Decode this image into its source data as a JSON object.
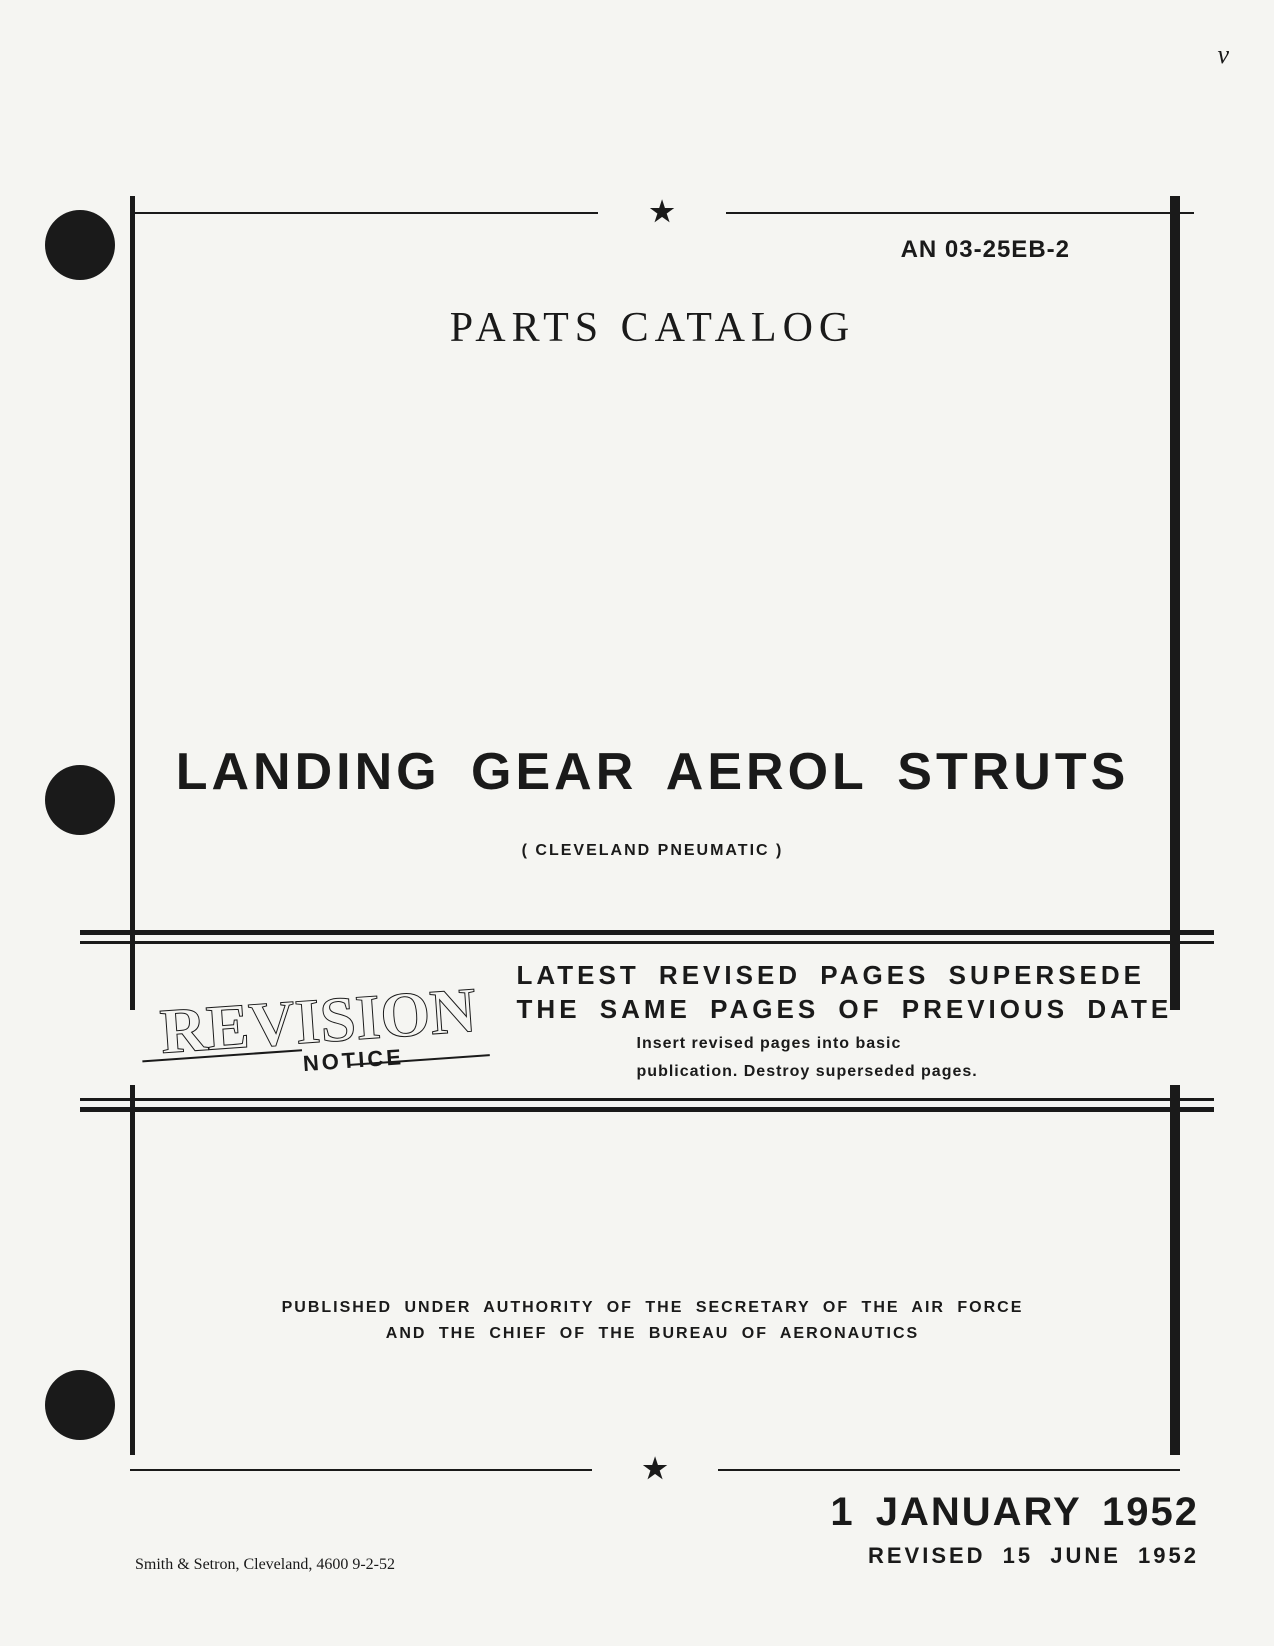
{
  "document": {
    "doc_id": "AN  03-25EB-2",
    "catalog_title": "PARTS  CATALOG",
    "main_title": "LANDING  GEAR  AEROL  STRUTS",
    "manufacturer": "( CLEVELAND  PNEUMATIC )",
    "star_glyph": "★"
  },
  "revision": {
    "stamp_text": "REVISION",
    "notice_text": "NOTICE",
    "heading_line1": "LATEST  REVISED  PAGES  SUPERSEDE",
    "heading_line2": "THE  SAME  PAGES  OF  PREVIOUS  DATE",
    "sub_line1": "Insert  revised  pages  into  basic",
    "sub_line2": "publication.  Destroy  superseded  pages."
  },
  "authority": {
    "line1": "PUBLISHED  UNDER  AUTHORITY  OF  THE  SECRETARY  OF  THE  AIR  FORCE",
    "line2": "AND  THE  CHIEF  OF  THE  BUREAU  OF  AERONAUTICS"
  },
  "dates": {
    "main": "1 JANUARY 1952",
    "revised": "REVISED 15 JUNE 1952"
  },
  "printer": "Smith & Setron, Cleveland, 4600 9-2-52",
  "marks": {
    "top_right": "v",
    "tick": "·"
  },
  "colors": {
    "background": "#f5f5f2",
    "text": "#1a1a1a",
    "rule": "#1a1a1a"
  },
  "typography": {
    "doc_id_fontsize": 24,
    "catalog_title_fontsize": 42,
    "main_title_fontsize": 52,
    "manufacturer_fontsize": 16,
    "revision_stamp_fontsize": 64,
    "revision_heading_fontsize": 26,
    "revision_sub_fontsize": 16,
    "authority_fontsize": 16,
    "main_date_fontsize": 40,
    "revised_date_fontsize": 22,
    "printer_fontsize": 16
  }
}
